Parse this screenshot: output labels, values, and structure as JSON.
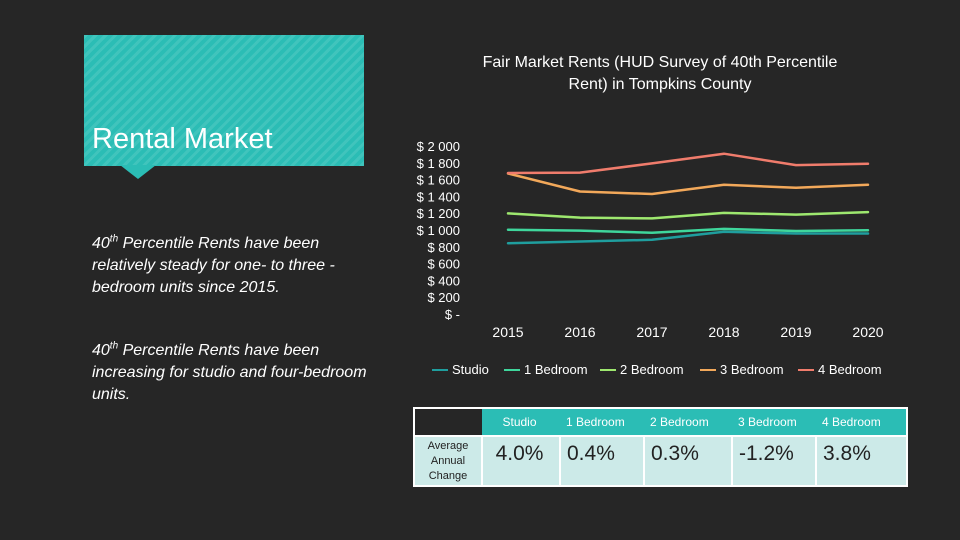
{
  "slide": {
    "title": "Rental Market",
    "bullet1_pre": "40",
    "bullet1_sup": "th",
    "bullet1_post": " Percentile Rents have been relatively steady for one- to three -bedroom units since 2015.",
    "bullet2_pre": "40",
    "bullet2_sup": "th",
    "bullet2_post": " Percentile Rents have been increasing for studio and four-bedroom units."
  },
  "chart_data": {
    "type": "line",
    "title": "Fair Market Rents (HUD Survey of 40th Percentile Rent) in Tompkins County",
    "categories": [
      "2015",
      "2016",
      "2017",
      "2018",
      "2019",
      "2020"
    ],
    "y_tick_labels": [
      "$ 2 000",
      "$ 1 800",
      "$ 1 600",
      "$ 1 400",
      "$ 1 200",
      "$ 1 000",
      "$ 800",
      "$ 600",
      "$ 400",
      "$ 200",
      "$ -"
    ],
    "ylim": [
      0,
      2000
    ],
    "grid": false,
    "legend_position": "bottom",
    "series": [
      {
        "name": "Studio",
        "color": "#1f9e9e",
        "values": [
          855,
          875,
          895,
          990,
          970,
          970
        ]
      },
      {
        "name": "1 Bedroom",
        "color": "#3fd69c",
        "values": [
          1015,
          1005,
          980,
          1025,
          1000,
          1010
        ]
      },
      {
        "name": "2 Bedroom",
        "color": "#9ee86f",
        "values": [
          1210,
          1160,
          1150,
          1215,
          1195,
          1225
        ]
      },
      {
        "name": "3 Bedroom",
        "color": "#f2a85a",
        "values": [
          1685,
          1470,
          1440,
          1550,
          1515,
          1550
        ]
      },
      {
        "name": "4 Bedroom",
        "color": "#f07c6c",
        "values": [
          1690,
          1695,
          1805,
          1920,
          1785,
          1800
        ]
      }
    ]
  },
  "table": {
    "row_label_1": "Average",
    "row_label_2": "Annual",
    "row_label_3": "Change",
    "headers": [
      "Studio",
      "1 Bedroom",
      "2 Bedroom",
      "3 Bedroom",
      "4 Bedroom"
    ],
    "values": [
      "4.0%",
      "0.4%",
      "0.3%",
      "-1.2%",
      "3.8%"
    ],
    "accent_color": "#2bbdb5"
  }
}
